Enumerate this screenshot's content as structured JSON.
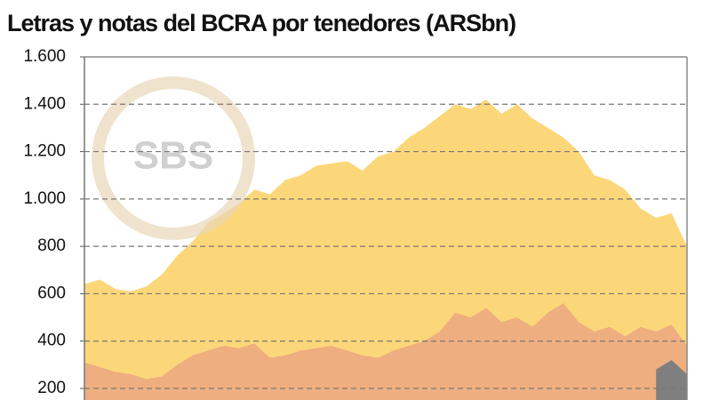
{
  "chart_data": {
    "type": "area",
    "title": "Letras y notas del BCRA por tenedores (ARSbn)",
    "watermark": "SBS",
    "categories": [
      null,
      null,
      null,
      null,
      null,
      null,
      null,
      null,
      null,
      null,
      null,
      null,
      null,
      null,
      null,
      null,
      null,
      null,
      null,
      null,
      null,
      null,
      null,
      null,
      null,
      null,
      null,
      null,
      null,
      null,
      null,
      null,
      null,
      null,
      null,
      null,
      null,
      null,
      null,
      null
    ],
    "series": [
      {
        "color": "#fcd779",
        "values": [
          640,
          660,
          620,
          610,
          630,
          680,
          760,
          820,
          900,
          940,
          980,
          1040,
          1020,
          1080,
          1100,
          1140,
          1150,
          1160,
          1120,
          1180,
          1200,
          1260,
          1300,
          1350,
          1400,
          1380,
          1420,
          1360,
          1400,
          1340,
          1300,
          1260,
          1200,
          1100,
          1080,
          1040,
          960,
          920,
          940,
          800
        ]
      },
      {
        "color": "#eeae80",
        "values": [
          310,
          290,
          270,
          260,
          240,
          250,
          300,
          340,
          360,
          380,
          370,
          390,
          330,
          340,
          360,
          370,
          380,
          360,
          340,
          330,
          360,
          380,
          400,
          440,
          520,
          500,
          540,
          480,
          500,
          460,
          520,
          560,
          480,
          440,
          460,
          420,
          460,
          440,
          470,
          380
        ]
      },
      {
        "color": "#7f7f7f",
        "values": [
          null,
          null,
          null,
          null,
          null,
          null,
          null,
          null,
          null,
          null,
          null,
          null,
          null,
          null,
          null,
          null,
          null,
          null,
          null,
          null,
          null,
          null,
          null,
          null,
          null,
          null,
          null,
          null,
          null,
          null,
          null,
          null,
          null,
          null,
          null,
          null,
          null,
          280,
          320,
          260
        ]
      }
    ],
    "ylim": [
      150,
      1600
    ],
    "yticks": [
      {
        "value": 1600,
        "label": "1.600"
      },
      {
        "value": 1400,
        "label": "1.400"
      },
      {
        "value": 1200,
        "label": "1.200"
      },
      {
        "value": 1000,
        "label": "1.000"
      },
      800,
      600,
      400,
      200
    ],
    "grid": true
  }
}
